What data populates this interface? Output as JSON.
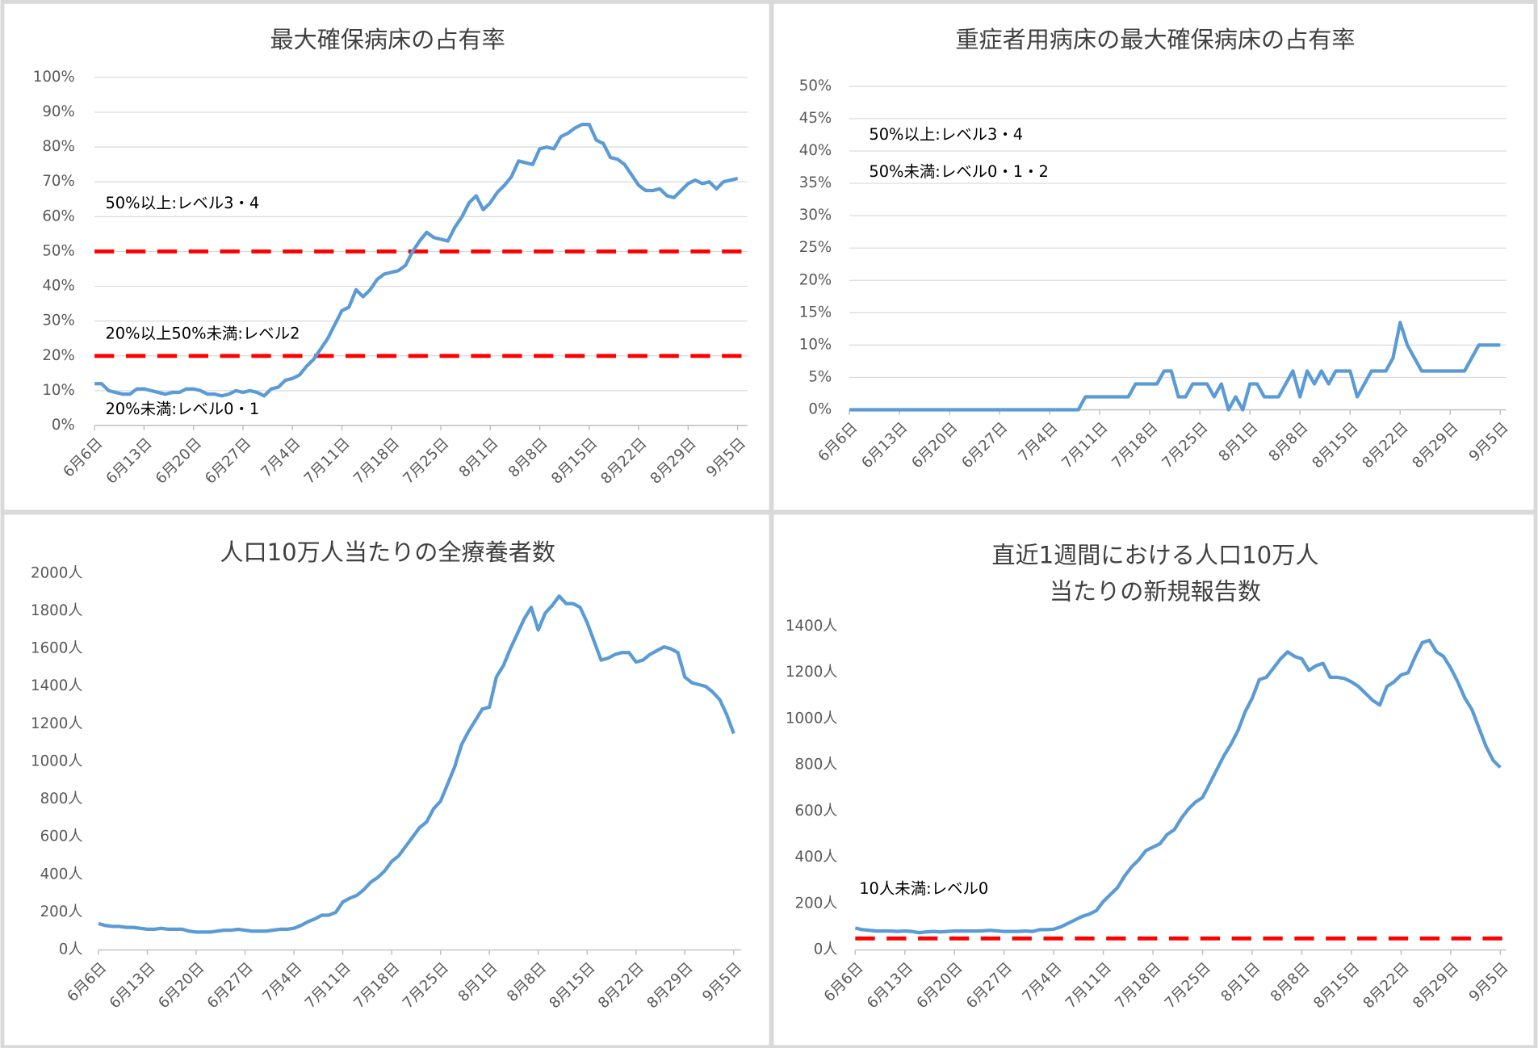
{
  "chart_data": [
    {
      "type": "line",
      "title": "最大確保病床の占有率",
      "color": "#5b9bd5",
      "grid": true,
      "categories": [
        "6月6日",
        null,
        null,
        null,
        null,
        null,
        null,
        "6月13日",
        null,
        null,
        null,
        null,
        null,
        null,
        "6月20日",
        null,
        null,
        null,
        null,
        null,
        null,
        "6月27日",
        null,
        null,
        null,
        null,
        null,
        null,
        "7月4日",
        null,
        null,
        null,
        null,
        null,
        null,
        "7月11日",
        null,
        null,
        null,
        null,
        null,
        null,
        "7月18日",
        null,
        null,
        null,
        null,
        null,
        null,
        "7月25日",
        null,
        null,
        null,
        null,
        null,
        null,
        "8月1日",
        null,
        null,
        null,
        null,
        null,
        null,
        "8月8日",
        null,
        null,
        null,
        null,
        null,
        null,
        "8月15日",
        null,
        null,
        null,
        null,
        null,
        null,
        "8月22日",
        null,
        null,
        null,
        null,
        null,
        null,
        "8月29日",
        null,
        null,
        null,
        null,
        null,
        null,
        "9月5日"
      ],
      "values": [
        12,
        12,
        10,
        9.5,
        9,
        9,
        10.5,
        10.5,
        10,
        9.5,
        9,
        9.5,
        9.5,
        10.5,
        10.5,
        10,
        9,
        9,
        8.5,
        9,
        10,
        9.5,
        10,
        9.5,
        8.5,
        10.5,
        11,
        13,
        13.5,
        14.5,
        17,
        19,
        22,
        25,
        29,
        33,
        34,
        39,
        37,
        39,
        42,
        43.5,
        44,
        44.5,
        46,
        50,
        53,
        55.5,
        54,
        53.5,
        53,
        57,
        60,
        64,
        66,
        62,
        64,
        67,
        69,
        71.5,
        76,
        75.5,
        75,
        79.5,
        80,
        79.5,
        83,
        84,
        85.5,
        86.5,
        86.5,
        82,
        81,
        77,
        76.5,
        75,
        72,
        69,
        67.5,
        67.5,
        68,
        66,
        65.5,
        67.5,
        69.5,
        70.5,
        69.5,
        70,
        68,
        70,
        70.5,
        71
      ],
      "ylim": [
        0,
        100
      ],
      "yticks": [
        {
          "value": 0,
          "label": "0%"
        },
        {
          "value": 10,
          "label": "10%"
        },
        {
          "value": 20,
          "label": "20%"
        },
        {
          "value": 30,
          "label": "30%"
        },
        {
          "value": 40,
          "label": "40%"
        },
        {
          "value": 50,
          "label": "50%"
        },
        {
          "value": 60,
          "label": "60%"
        },
        {
          "value": 70,
          "label": "70%"
        },
        {
          "value": 80,
          "label": "80%"
        },
        {
          "value": 90,
          "label": "90%"
        },
        {
          "value": 100,
          "label": "100%"
        }
      ],
      "reference_lines": [
        {
          "value": 50,
          "color": "#ff0000"
        },
        {
          "value": 20,
          "color": "#ff0000"
        }
      ],
      "annotations": [
        "50%以上:レベル3・4",
        "20%以上50%未満:レベル2",
        "20%未満:レベル0・1"
      ]
    },
    {
      "type": "line",
      "title": "重症者用病床の最大確保病床の占有率",
      "color": "#5b9bd5",
      "grid": true,
      "categories": [
        "6月6日",
        null,
        null,
        null,
        null,
        null,
        null,
        "6月13日",
        null,
        null,
        null,
        null,
        null,
        null,
        "6月20日",
        null,
        null,
        null,
        null,
        null,
        null,
        "6月27日",
        null,
        null,
        null,
        null,
        null,
        null,
        "7月4日",
        null,
        null,
        null,
        null,
        null,
        null,
        "7月11日",
        null,
        null,
        null,
        null,
        null,
        null,
        "7月18日",
        null,
        null,
        null,
        null,
        null,
        null,
        "7月25日",
        null,
        null,
        null,
        null,
        null,
        null,
        "8月1日",
        null,
        null,
        null,
        null,
        null,
        null,
        "8月8日",
        null,
        null,
        null,
        null,
        null,
        null,
        "8月15日",
        null,
        null,
        null,
        null,
        null,
        null,
        "8月22日",
        null,
        null,
        null,
        null,
        null,
        null,
        "8月29日",
        null,
        null,
        null,
        null,
        null,
        null,
        "9月5日"
      ],
      "values": [
        0,
        0,
        0,
        0,
        0,
        0,
        0,
        0,
        0,
        0,
        0,
        0,
        0,
        0,
        0,
        0,
        0,
        0,
        0,
        0,
        0,
        0,
        0,
        0,
        0,
        0,
        0,
        0,
        0,
        0,
        0,
        0,
        0,
        2,
        2,
        2,
        2,
        2,
        2,
        2,
        4,
        4,
        4,
        4,
        6,
        6,
        2,
        2,
        4,
        4,
        4,
        2,
        4,
        0,
        2,
        0,
        4,
        4,
        2,
        2,
        2,
        4,
        6,
        2,
        6,
        4,
        6,
        4,
        6,
        6,
        6,
        2,
        4,
        6,
        6,
        6,
        8,
        13.5,
        10,
        8,
        6,
        6,
        6,
        6,
        6,
        6,
        6,
        8,
        10,
        10,
        10,
        10
      ],
      "ylim": [
        0,
        50
      ],
      "yticks": [
        {
          "value": 0,
          "label": "0%"
        },
        {
          "value": 5,
          "label": "5%"
        },
        {
          "value": 10,
          "label": "10%"
        },
        {
          "value": 15,
          "label": "15%"
        },
        {
          "value": 20,
          "label": "20%"
        },
        {
          "value": 25,
          "label": "25%"
        },
        {
          "value": 30,
          "label": "30%"
        },
        {
          "value": 35,
          "label": "35%"
        },
        {
          "value": 40,
          "label": "40%"
        },
        {
          "value": 45,
          "label": "45%"
        },
        {
          "value": 50,
          "label": "50%"
        }
      ],
      "reference_lines": [],
      "annotations": [
        "50%以上:レベル3・4",
        "50%未満:レベル0・1・2"
      ]
    },
    {
      "type": "line",
      "title": "人口10万人当たりの全療養者数",
      "color": "#5b9bd5",
      "grid": false,
      "categories": [
        "6月6日",
        null,
        null,
        null,
        null,
        null,
        null,
        "6月13日",
        null,
        null,
        null,
        null,
        null,
        null,
        "6月20日",
        null,
        null,
        null,
        null,
        null,
        null,
        "6月27日",
        null,
        null,
        null,
        null,
        null,
        null,
        "7月4日",
        null,
        null,
        null,
        null,
        null,
        null,
        "7月11日",
        null,
        null,
        null,
        null,
        null,
        null,
        "7月18日",
        null,
        null,
        null,
        null,
        null,
        null,
        "7月25日",
        null,
        null,
        null,
        null,
        null,
        null,
        "8月1日",
        null,
        null,
        null,
        null,
        null,
        null,
        "8月8日",
        null,
        null,
        null,
        null,
        null,
        null,
        "8月15日",
        null,
        null,
        null,
        null,
        null,
        null,
        "8月22日",
        null,
        null,
        null,
        null,
        null,
        null,
        "8月29日",
        null,
        null,
        null,
        null,
        null,
        null,
        "9月5日"
      ],
      "values": [
        140,
        130,
        125,
        125,
        120,
        120,
        115,
        110,
        110,
        115,
        110,
        110,
        110,
        100,
        95,
        95,
        95,
        100,
        105,
        105,
        110,
        105,
        100,
        100,
        100,
        105,
        110,
        110,
        115,
        130,
        150,
        165,
        185,
        185,
        200,
        255,
        275,
        290,
        320,
        360,
        385,
        420,
        470,
        500,
        550,
        600,
        650,
        680,
        750,
        790,
        880,
        970,
        1090,
        1160,
        1220,
        1280,
        1290,
        1450,
        1510,
        1600,
        1680,
        1760,
        1820,
        1700,
        1790,
        1830,
        1880,
        1840,
        1840,
        1820,
        1740,
        1640,
        1540,
        1550,
        1570,
        1580,
        1580,
        1530,
        1540,
        1570,
        1590,
        1610,
        1600,
        1580,
        1450,
        1420,
        1410,
        1400,
        1370,
        1330,
        1250,
        1150
      ],
      "ylim": [
        0,
        2000
      ],
      "yticks": [
        {
          "value": 0,
          "label": "0人"
        },
        {
          "value": 200,
          "label": "200人"
        },
        {
          "value": 400,
          "label": "400人"
        },
        {
          "value": 600,
          "label": "600人"
        },
        {
          "value": 800,
          "label": "800人"
        },
        {
          "value": 1000,
          "label": "1000人"
        },
        {
          "value": 1200,
          "label": "1200人"
        },
        {
          "value": 1400,
          "label": "1400人"
        },
        {
          "value": 1600,
          "label": "1600人"
        },
        {
          "value": 1800,
          "label": "1800人"
        },
        {
          "value": 2000,
          "label": "2000人"
        }
      ],
      "reference_lines": [],
      "annotations": []
    },
    {
      "type": "line",
      "title": [
        "直近1週間における人口10万人",
        "当たりの新規報告数"
      ],
      "color": "#5b9bd5",
      "grid": false,
      "categories": [
        "6月6日",
        null,
        null,
        null,
        null,
        null,
        null,
        "6月13日",
        null,
        null,
        null,
        null,
        null,
        null,
        "6月20日",
        null,
        null,
        null,
        null,
        null,
        null,
        "6月27日",
        null,
        null,
        null,
        null,
        null,
        null,
        "7月4日",
        null,
        null,
        null,
        null,
        null,
        null,
        "7月11日",
        null,
        null,
        null,
        null,
        null,
        null,
        "7月18日",
        null,
        null,
        null,
        null,
        null,
        null,
        "7月25日",
        null,
        null,
        null,
        null,
        null,
        null,
        "8月1日",
        null,
        null,
        null,
        null,
        null,
        null,
        "8月8日",
        null,
        null,
        null,
        null,
        null,
        null,
        "8月15日",
        null,
        null,
        null,
        null,
        null,
        null,
        "8月22日",
        null,
        null,
        null,
        null,
        null,
        null,
        "8月29日",
        null,
        null,
        null,
        null,
        null,
        null,
        "9月5日"
      ],
      "values": [
        95,
        88,
        85,
        82,
        82,
        82,
        80,
        82,
        80,
        75,
        78,
        80,
        78,
        80,
        82,
        82,
        82,
        82,
        83,
        85,
        83,
        80,
        80,
        80,
        82,
        80,
        88,
        88,
        90,
        100,
        115,
        130,
        145,
        155,
        170,
        210,
        240,
        270,
        320,
        360,
        390,
        430,
        445,
        460,
        500,
        520,
        570,
        610,
        640,
        660,
        720,
        780,
        840,
        890,
        950,
        1030,
        1090,
        1170,
        1180,
        1220,
        1260,
        1290,
        1270,
        1260,
        1210,
        1230,
        1240,
        1180,
        1180,
        1175,
        1160,
        1140,
        1110,
        1080,
        1060,
        1140,
        1160,
        1190,
        1200,
        1270,
        1330,
        1340,
        1290,
        1270,
        1220,
        1160,
        1090,
        1040,
        960,
        880,
        820,
        790
      ],
      "ylim": [
        0,
        1400
      ],
      "yticks": [
        {
          "value": 0,
          "label": "0人"
        },
        {
          "value": 200,
          "label": "200人"
        },
        {
          "value": 400,
          "label": "400人"
        },
        {
          "value": 600,
          "label": "600人"
        },
        {
          "value": 800,
          "label": "800人"
        },
        {
          "value": 1000,
          "label": "1000人"
        },
        {
          "value": 1200,
          "label": "1200人"
        },
        {
          "value": 1400,
          "label": "1400人"
        }
      ],
      "reference_lines": [
        {
          "value": 50,
          "color": "#ff0000"
        }
      ],
      "annotations": [
        "10人未満:レベル0"
      ]
    }
  ]
}
